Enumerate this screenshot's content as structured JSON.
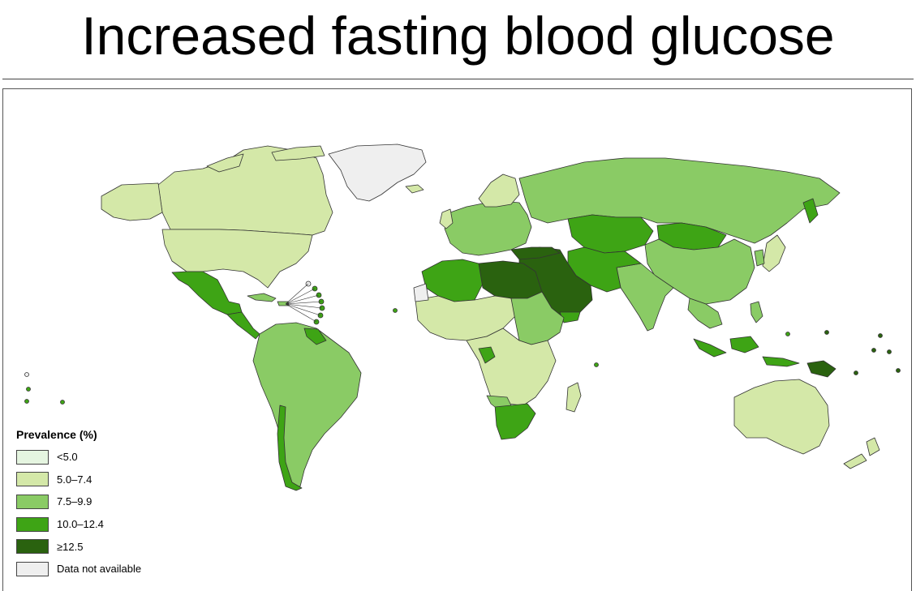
{
  "title": "Increased fasting blood glucose",
  "legend": {
    "title": "Prevalence (%)",
    "items": [
      {
        "label": "<5.0",
        "color": "#e5f5e0"
      },
      {
        "label": "5.0–7.4",
        "color": "#d4e8a8"
      },
      {
        "label": "7.5–9.9",
        "color": "#8acb65"
      },
      {
        "label": "10.0–12.4",
        "color": "#3ea415"
      },
      {
        "label": "≥12.5",
        "color": "#2a620f"
      },
      {
        "label": "Data not available",
        "color": "#efefef"
      }
    ]
  }
}
